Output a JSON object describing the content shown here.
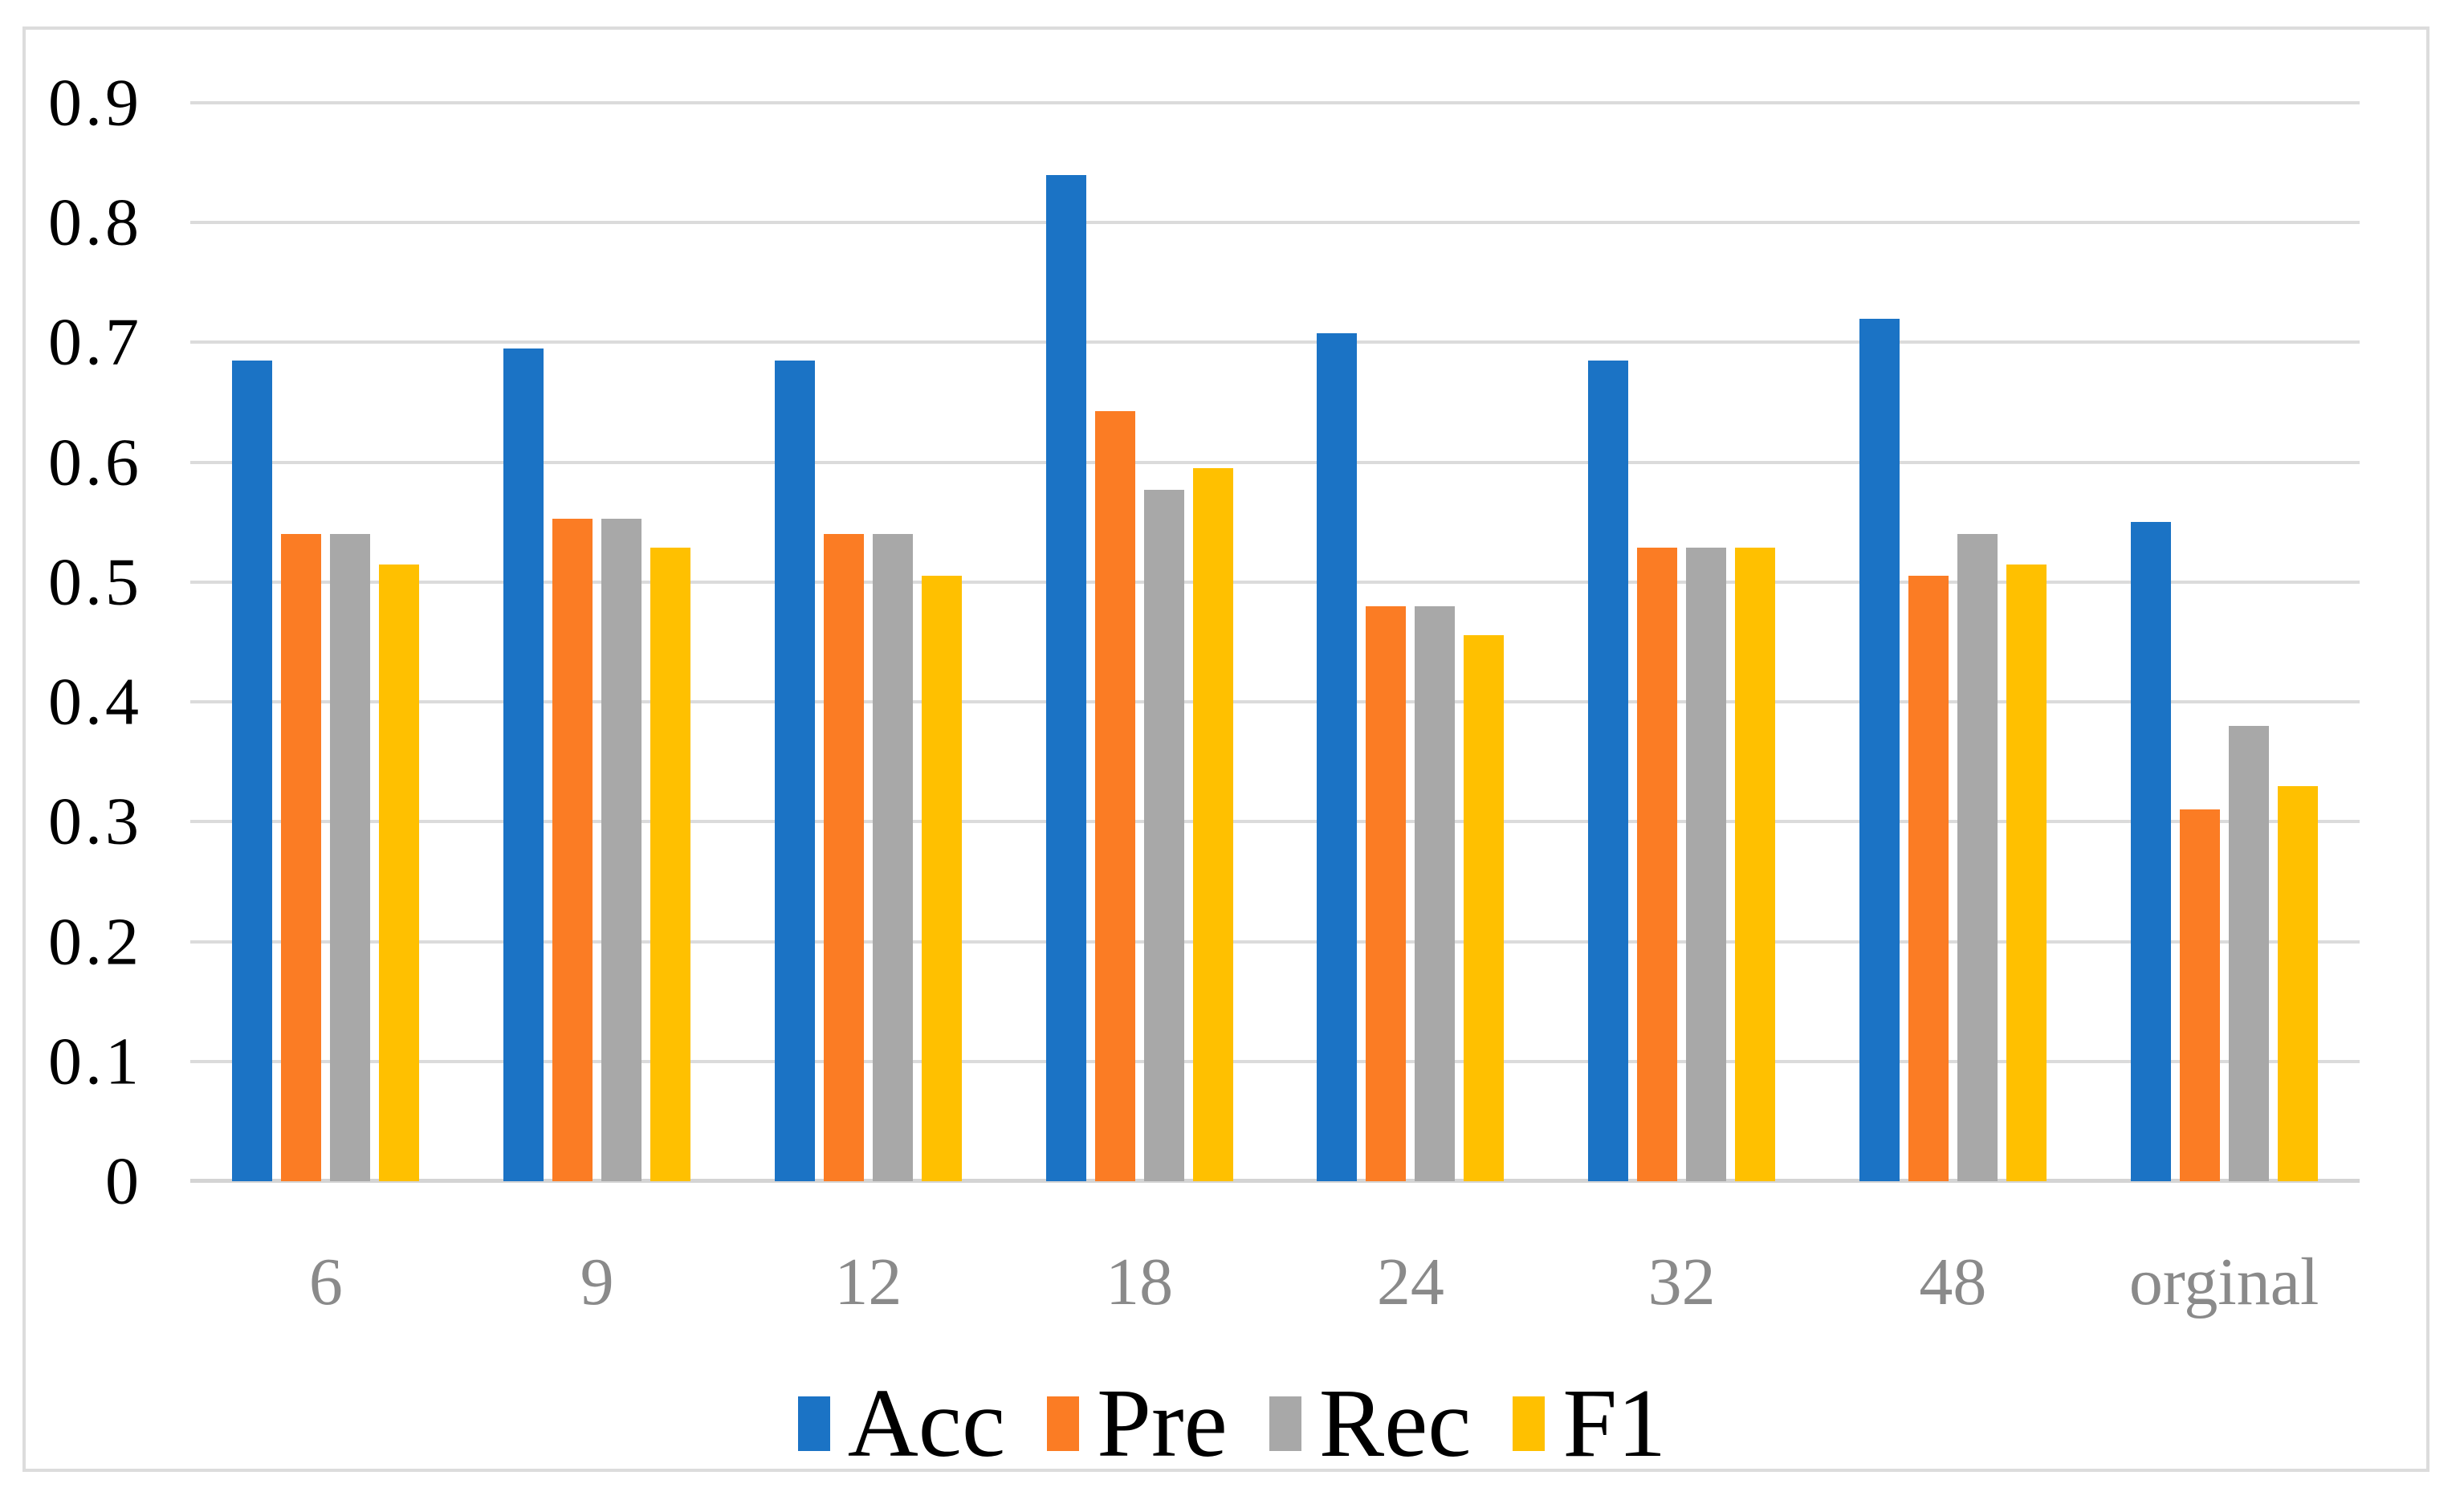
{
  "figure": {
    "background": "#ffffff",
    "border_color": "#dcdcdc"
  },
  "chart_data": {
    "type": "bar",
    "title": "",
    "xlabel": "",
    "ylabel": "",
    "categories": [
      "6",
      "9",
      "12",
      "18",
      "24",
      "32",
      "48",
      "orginal"
    ],
    "series": [
      {
        "name": "Acc",
        "color": "#1b73c5",
        "values": [
          0.685,
          0.695,
          0.685,
          0.84,
          0.708,
          0.685,
          0.72,
          0.55
        ]
      },
      {
        "name": "Pre",
        "color": "#fb7c24",
        "values": [
          0.54,
          0.553,
          0.54,
          0.643,
          0.48,
          0.529,
          0.505,
          0.31
        ]
      },
      {
        "name": "Rec",
        "color": "#a8a8a8",
        "values": [
          0.54,
          0.553,
          0.54,
          0.577,
          0.48,
          0.529,
          0.54,
          0.38
        ]
      },
      {
        "name": "F1",
        "color": "#ffc000",
        "values": [
          0.515,
          0.529,
          0.505,
          0.595,
          0.456,
          0.529,
          0.515,
          0.33
        ]
      }
    ],
    "ylim": [
      0,
      0.9
    ],
    "y_ticks": [
      "0.9",
      "0.8",
      "0.7",
      "0.6",
      "0.5",
      "0.4",
      "0.3",
      "0.2",
      "0.1",
      "0"
    ],
    "grid": true,
    "gridline_color": "#dbdbdb",
    "baseline_color": "#d4d4d4",
    "x_label_color": "#8a8a8a",
    "y_label_color": "#000000",
    "legend_position": "bottom"
  }
}
